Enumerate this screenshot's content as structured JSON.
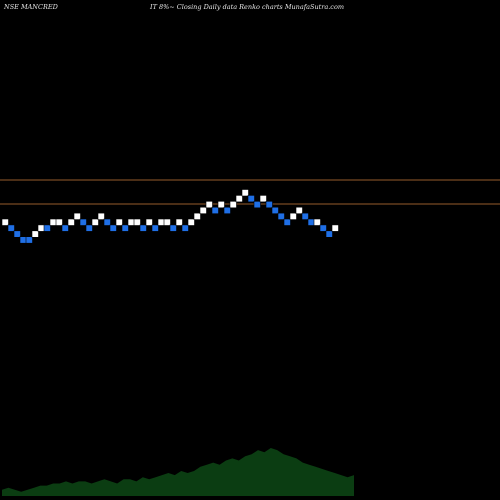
{
  "header": {
    "symbol": "NSE MANCRED",
    "subtitle": "IT 8%~  Closing Daily data  Renko  charts MunafaSutra.com"
  },
  "chart_data": {
    "type": "renko",
    "title": "NSE MANCRED",
    "subtitle": "IT 8%~ Closing Daily data Renko charts MunafaSutra.com",
    "reference_lines": [
      {
        "name": "upper",
        "color": "#c87a3a"
      },
      {
        "name": "lower",
        "color": "#c87a3a"
      }
    ],
    "bricks": [
      {
        "level": 5,
        "dir": "up"
      },
      {
        "level": 4,
        "dir": "down"
      },
      {
        "level": 3,
        "dir": "down"
      },
      {
        "level": 2,
        "dir": "down"
      },
      {
        "level": 2,
        "dir": "down"
      },
      {
        "level": 3,
        "dir": "up"
      },
      {
        "level": 4,
        "dir": "up"
      },
      {
        "level": 4,
        "dir": "down"
      },
      {
        "level": 5,
        "dir": "up"
      },
      {
        "level": 5,
        "dir": "up"
      },
      {
        "level": 4,
        "dir": "down"
      },
      {
        "level": 5,
        "dir": "up"
      },
      {
        "level": 6,
        "dir": "up"
      },
      {
        "level": 5,
        "dir": "down"
      },
      {
        "level": 4,
        "dir": "down"
      },
      {
        "level": 5,
        "dir": "up"
      },
      {
        "level": 6,
        "dir": "up"
      },
      {
        "level": 5,
        "dir": "down"
      },
      {
        "level": 4,
        "dir": "down"
      },
      {
        "level": 5,
        "dir": "up"
      },
      {
        "level": 4,
        "dir": "down"
      },
      {
        "level": 5,
        "dir": "up"
      },
      {
        "level": 5,
        "dir": "up"
      },
      {
        "level": 4,
        "dir": "down"
      },
      {
        "level": 5,
        "dir": "up"
      },
      {
        "level": 4,
        "dir": "down"
      },
      {
        "level": 5,
        "dir": "up"
      },
      {
        "level": 5,
        "dir": "up"
      },
      {
        "level": 4,
        "dir": "down"
      },
      {
        "level": 5,
        "dir": "up"
      },
      {
        "level": 4,
        "dir": "down"
      },
      {
        "level": 5,
        "dir": "up"
      },
      {
        "level": 6,
        "dir": "up"
      },
      {
        "level": 7,
        "dir": "up"
      },
      {
        "level": 8,
        "dir": "up"
      },
      {
        "level": 7,
        "dir": "down"
      },
      {
        "level": 8,
        "dir": "up"
      },
      {
        "level": 7,
        "dir": "down"
      },
      {
        "level": 8,
        "dir": "up"
      },
      {
        "level": 9,
        "dir": "up"
      },
      {
        "level": 10,
        "dir": "up"
      },
      {
        "level": 9,
        "dir": "down"
      },
      {
        "level": 8,
        "dir": "down"
      },
      {
        "level": 9,
        "dir": "up"
      },
      {
        "level": 8,
        "dir": "down"
      },
      {
        "level": 7,
        "dir": "down"
      },
      {
        "level": 6,
        "dir": "down"
      },
      {
        "level": 5,
        "dir": "down"
      },
      {
        "level": 6,
        "dir": "up"
      },
      {
        "level": 7,
        "dir": "up"
      },
      {
        "level": 6,
        "dir": "down"
      },
      {
        "level": 5,
        "dir": "down"
      },
      {
        "level": 5,
        "dir": "up"
      },
      {
        "level": 4,
        "dir": "down"
      },
      {
        "level": 3,
        "dir": "down"
      },
      {
        "level": 4,
        "dir": "up"
      }
    ],
    "colors": {
      "up": "#ffffff",
      "down": "#1f6fe6",
      "volume": "#0b3d12",
      "grid": "#c87a3a"
    },
    "volume": [
      3,
      4,
      3,
      2,
      3,
      4,
      5,
      5,
      6,
      6,
      7,
      6,
      7,
      7,
      6,
      7,
      8,
      7,
      6,
      8,
      8,
      7,
      9,
      8,
      9,
      10,
      11,
      10,
      12,
      11,
      12,
      14,
      15,
      16,
      15,
      17,
      18,
      17,
      19,
      20,
      22,
      21,
      23,
      22,
      20,
      19,
      18,
      16,
      15,
      14,
      13,
      12,
      11,
      10,
      9,
      10
    ]
  }
}
